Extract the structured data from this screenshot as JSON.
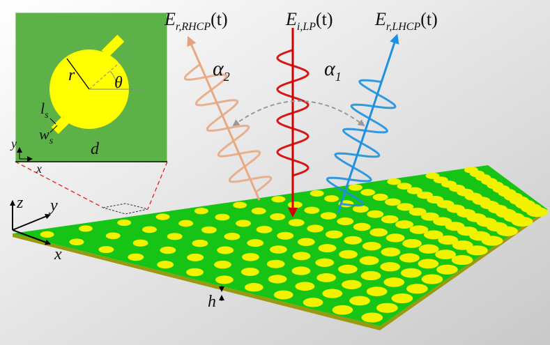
{
  "inset": {
    "radius": "r",
    "angle": "θ",
    "stub_length": {
      "symbol": "l",
      "subscript": "s"
    },
    "stub_width": {
      "symbol": "w",
      "subscript": "s"
    },
    "period": "d",
    "axis_y": "y",
    "axis_x": "x"
  },
  "beams": [
    {
      "symbol": "E",
      "subscript": "r,RHCP",
      "suffix": "(t)"
    },
    {
      "symbol": "E",
      "subscript": "i,LP",
      "suffix": "(t)"
    },
    {
      "symbol": "E",
      "subscript": "r,LHCP",
      "suffix": "(t)"
    }
  ],
  "angles": [
    {
      "symbol": "α",
      "subscript": "2"
    },
    {
      "symbol": "α",
      "subscript": "1"
    }
  ],
  "axes": {
    "z": "z",
    "y": "y",
    "x": "x"
  },
  "thickness": "h"
}
